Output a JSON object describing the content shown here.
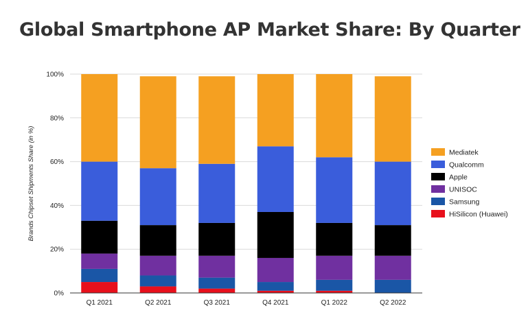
{
  "page": {
    "title": "Global Smartphone AP Market Share: By Quarter"
  },
  "chart_data": {
    "type": "bar",
    "stacked": true,
    "title": "Global Smartphone AP Market Share: By Quarter",
    "xlabel": "",
    "ylabel": "Brands Chipset Shipments Share (in %)",
    "ylim": [
      0,
      100
    ],
    "yticks": [
      "0%",
      "20%",
      "40%",
      "60%",
      "80%",
      "100%"
    ],
    "grid": true,
    "legend_position": "right",
    "categories": [
      "Q1 2021",
      "Q2 2021",
      "Q3 2021",
      "Q4 2021",
      "Q1 2022",
      "Q2 2022"
    ],
    "series": [
      {
        "name": "HiSilicon (Huawei)",
        "color": "#e8101c",
        "values": [
          5,
          3,
          2,
          1,
          1,
          0
        ]
      },
      {
        "name": "Samsung",
        "color": "#1a56a6",
        "values": [
          6,
          5,
          5,
          4,
          5,
          6
        ]
      },
      {
        "name": "UNISOC",
        "color": "#7030a0",
        "values": [
          7,
          9,
          10,
          11,
          11,
          11
        ]
      },
      {
        "name": "Apple",
        "color": "#000000",
        "values": [
          15,
          14,
          15,
          21,
          15,
          14
        ]
      },
      {
        "name": "Qualcomm",
        "color": "#3a5ddb",
        "values": [
          27,
          26,
          27,
          30,
          30,
          29
        ]
      },
      {
        "name": "Mediatek",
        "color": "#f5a021",
        "values": [
          40,
          42,
          40,
          33,
          38,
          39
        ]
      }
    ],
    "legend_order": [
      "Mediatek",
      "Qualcomm",
      "Apple",
      "UNISOC",
      "Samsung",
      "HiSilicon (Huawei)"
    ]
  }
}
